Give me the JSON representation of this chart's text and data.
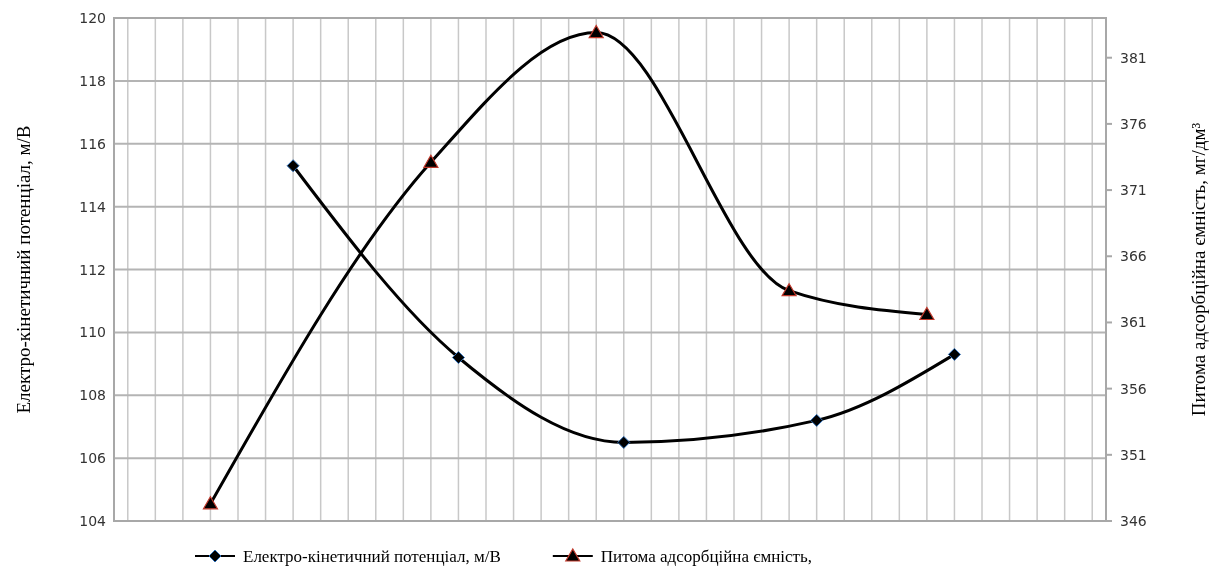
{
  "chart_data": {
    "type": "line",
    "ylabel": "Електро-кінетичний потенціал, м/В",
    "y2label": "Питома адсорбційна ємність, мг/дм³",
    "categories": [
      null,
      null,
      null,
      null,
      null,
      null,
      null,
      null,
      null,
      null,
      null,
      null,
      null,
      null,
      null,
      null,
      null,
      null,
      null,
      null,
      null,
      null,
      null,
      null,
      null,
      null,
      null,
      null,
      null,
      null,
      null,
      null,
      null,
      null,
      null,
      null
    ],
    "ylim": [
      104,
      120
    ],
    "yticks": [
      104,
      106,
      108,
      110,
      112,
      114,
      116,
      118,
      120
    ],
    "y2lim": [
      346,
      384
    ],
    "y2ticks": [
      346,
      351,
      356,
      361,
      366,
      371,
      376,
      381
    ],
    "grid": true,
    "legend": "bottom",
    "series": [
      {
        "name": "Електро-кінетичний потенціал, м/В",
        "color": "#000000",
        "marker": "diamond",
        "values": [
          null,
          null,
          null,
          null,
          null,
          null,
          115.3,
          null,
          null,
          null,
          null,
          null,
          109.2,
          null,
          null,
          null,
          null,
          null,
          106.5,
          null,
          null,
          null,
          null,
          null,
          null,
          107.2,
          null,
          null,
          null,
          null,
          109.3,
          null,
          null,
          null,
          null,
          null
        ]
      },
      {
        "name": "Питома адсорбційна ємність,",
        "color": "#000000",
        "marker": "triangle",
        "axis": "y2",
        "values": [
          null,
          null,
          null,
          347.3,
          null,
          null,
          null,
          null,
          null,
          null,
          null,
          373.1,
          null,
          null,
          null,
          null,
          null,
          382.9,
          null,
          null,
          null,
          null,
          null,
          null,
          363.4,
          null,
          null,
          null,
          null,
          361.6,
          null,
          null,
          null,
          null,
          null,
          null
        ]
      }
    ]
  }
}
